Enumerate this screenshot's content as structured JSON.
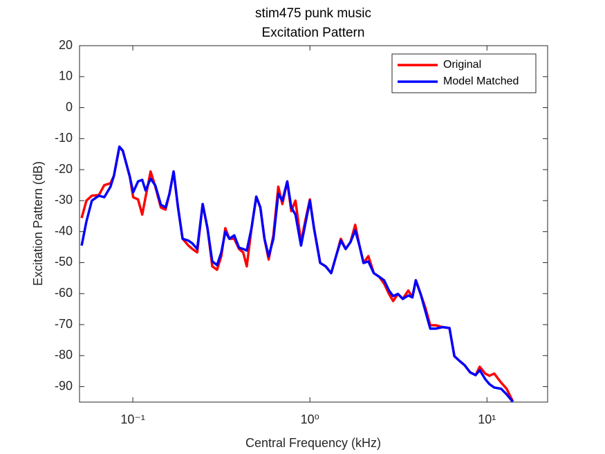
{
  "chart_data": {
    "type": "line",
    "title": "stim475 punk music",
    "subtitle": "Excitation Pattern",
    "x_label": "Central Frequency (kHz)",
    "y_label": "Excitation Pattern (dB)",
    "x_scale": "log",
    "xlim": [
      0.05,
      22
    ],
    "ylim": [
      -95,
      20
    ],
    "xticks": [
      {
        "value": 0.1,
        "label": "10⁻¹"
      },
      {
        "value": 1,
        "label": "10⁰"
      },
      {
        "value": 10,
        "label": "10¹"
      }
    ],
    "yticks": [
      20,
      10,
      0,
      -10,
      -20,
      -30,
      -40,
      -50,
      -60,
      -70,
      -80,
      -90
    ],
    "legend_position": "upper right",
    "x": [
      0.0514,
      0.0547,
      0.0587,
      0.0643,
      0.069,
      0.0748,
      0.0782,
      0.084,
      0.0878,
      0.0961,
      0.1005,
      0.107,
      0.113,
      0.118,
      0.126,
      0.134,
      0.144,
      0.153,
      0.161,
      0.17,
      0.18,
      0.191,
      0.206,
      0.217,
      0.231,
      0.248,
      0.264,
      0.281,
      0.299,
      0.316,
      0.333,
      0.351,
      0.374,
      0.398,
      0.42,
      0.44,
      0.468,
      0.498,
      0.525,
      0.554,
      0.585,
      0.622,
      0.663,
      0.699,
      0.745,
      0.785,
      0.829,
      0.891,
      0.94,
      1.0,
      1.055,
      1.143,
      1.228,
      1.319,
      1.405,
      1.495,
      1.592,
      1.694,
      1.803,
      1.905,
      2.009,
      2.138,
      2.296,
      2.467,
      2.625,
      2.797,
      2.951,
      3.141,
      3.345,
      3.593,
      3.791,
      3.963,
      4.219,
      4.492,
      4.783,
      5.138,
      5.62,
      6.14,
      6.546,
      7.027,
      7.48,
      8.035,
      8.629,
      9.102,
      9.779,
      10.32,
      10.99,
      12.02,
      12.91,
      13.98
    ],
    "series": [
      {
        "name": "Original",
        "color": "#ff0000",
        "values": [
          -35.6,
          -30,
          -28.4,
          -28.2,
          -25,
          -24.4,
          -22,
          -12.6,
          -13.9,
          -22.2,
          -28.9,
          -29.6,
          -34.5,
          -28.9,
          -20.6,
          -25.5,
          -32.2,
          -32.9,
          -27.8,
          -20.6,
          -32.2,
          -42.3,
          -44.5,
          -45.6,
          -46.7,
          -31.1,
          -38.9,
          -51.2,
          -52.3,
          -47.9,
          -38.9,
          -42.3,
          -42.3,
          -45.6,
          -46.7,
          -51.2,
          -38.9,
          -28.7,
          -32.2,
          -42.3,
          -49,
          -41.2,
          -25.5,
          -31.1,
          -23.8,
          -33.4,
          -30,
          -43.4,
          -36.7,
          -29.6,
          -38.9,
          -50.1,
          -51.2,
          -53.4,
          -47.9,
          -42.3,
          -45.6,
          -43.4,
          -37.8,
          -44.5,
          -50.1,
          -47.9,
          -53.4,
          -54.6,
          -56.8,
          -60.1,
          -62.4,
          -60.1,
          -61.7,
          -59,
          -61.2,
          -55.7,
          -60.1,
          -64.6,
          -70.2,
          -70.2,
          -70.8,
          -71.1,
          -80.2,
          -81.8,
          -83.1,
          -85.4,
          -86.3,
          -83.6,
          -85.8,
          -86.5,
          -85.8,
          -88.7,
          -90.7,
          -94.7
        ]
      },
      {
        "name": "Model Matched",
        "color": "#0000ff",
        "values": [
          -44.5,
          -36.7,
          -30,
          -28.4,
          -28.9,
          -25.5,
          -22,
          -12.6,
          -13.9,
          -22.2,
          -27.3,
          -23.8,
          -23.3,
          -26.7,
          -22.9,
          -25.1,
          -31.3,
          -32.2,
          -27.8,
          -20.6,
          -32.2,
          -42.3,
          -42.9,
          -43.8,
          -45.6,
          -31.1,
          -38.9,
          -49.6,
          -50.8,
          -46.7,
          -40,
          -42.3,
          -41.2,
          -45.2,
          -45.6,
          -46.1,
          -38.9,
          -28.7,
          -32.2,
          -42.3,
          -47.9,
          -42.3,
          -27.8,
          -30,
          -23.8,
          -32.2,
          -34.5,
          -44.5,
          -37.8,
          -30,
          -38.9,
          -50.1,
          -51.2,
          -53.4,
          -47.9,
          -42.9,
          -45.6,
          -43.4,
          -39.6,
          -44.5,
          -50.1,
          -49.6,
          -53.4,
          -54.6,
          -55.7,
          -59,
          -60.8,
          -60.1,
          -61.7,
          -60.6,
          -61.2,
          -55.7,
          -60.1,
          -65.7,
          -71.3,
          -71.3,
          -70.8,
          -71.1,
          -80.2,
          -81.8,
          -83.1,
          -85.4,
          -86.3,
          -84.7,
          -87.6,
          -89.2,
          -90.3,
          -90.7,
          -92.5,
          -94.9
        ]
      }
    ]
  }
}
